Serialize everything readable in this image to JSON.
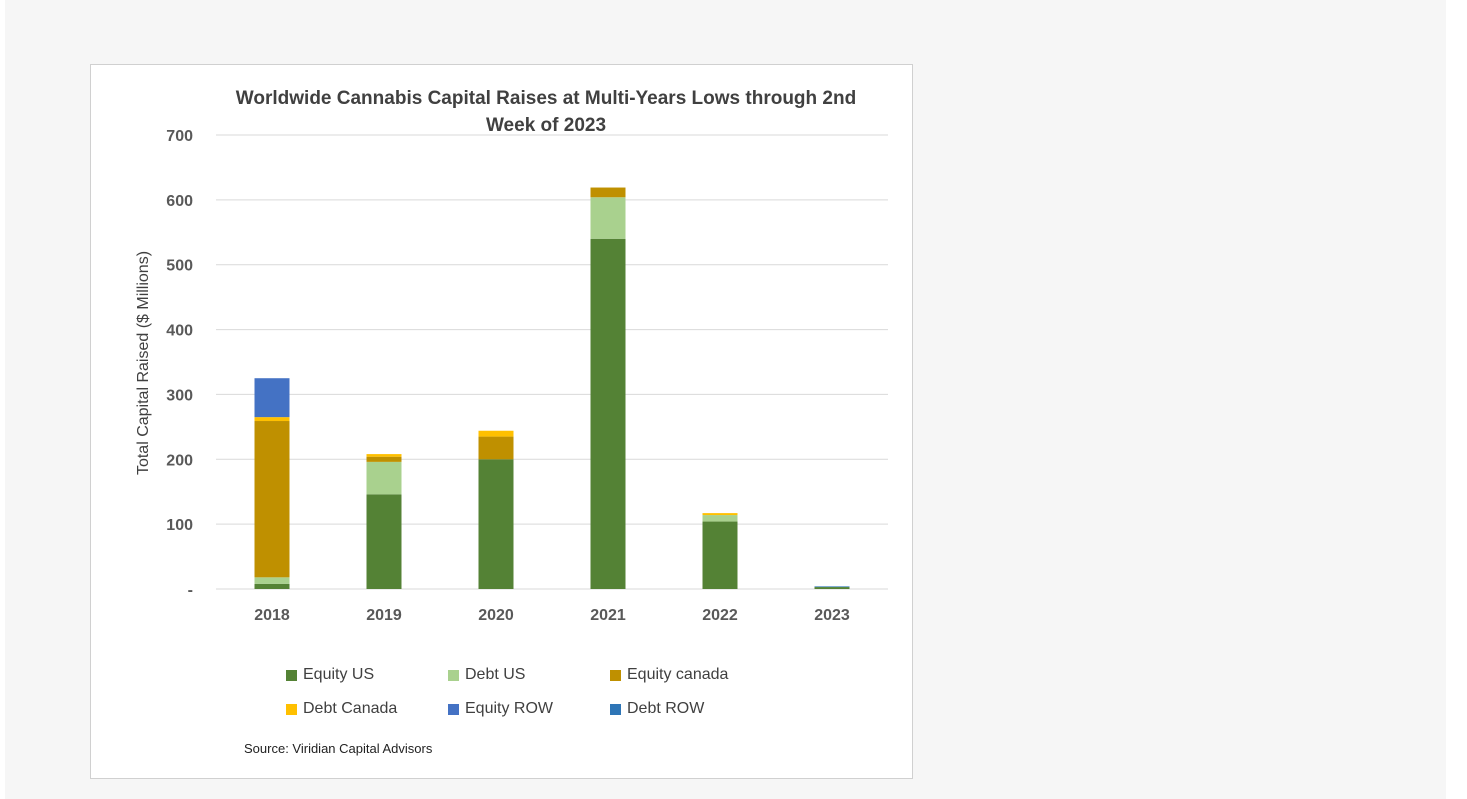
{
  "chart_data": {
    "type": "bar",
    "stacked": true,
    "title": "Worldwide Cannabis Capital Raises at Multi-Years Lows through 2nd Week of 2023",
    "xlabel": "",
    "ylabel": "Total Capital Raised ($ Millions)",
    "ylim": [
      0,
      700
    ],
    "yticks": [
      0,
      100,
      200,
      300,
      400,
      500,
      600,
      700
    ],
    "ytick_labels": [
      "-",
      "100",
      "200",
      "300",
      "400",
      "500",
      "600",
      "700"
    ],
    "grid": true,
    "legend_position": "bottom",
    "categories": [
      "2018",
      "2019",
      "2020",
      "2021",
      "2022",
      "2023"
    ],
    "series": [
      {
        "name": "Equity US",
        "color": "#548235",
        "values": [
          8,
          146,
          200,
          540,
          104,
          3
        ]
      },
      {
        "name": "Debt US",
        "color": "#a9d18e",
        "values": [
          10,
          50,
          0,
          64,
          10,
          0
        ]
      },
      {
        "name": "Equity canada",
        "color": "#bf9000",
        "values": [
          241,
          8,
          35,
          15,
          0,
          0
        ]
      },
      {
        "name": "Debt Canada",
        "color": "#ffc000",
        "values": [
          6,
          4,
          9,
          0,
          3,
          0
        ]
      },
      {
        "name": "Equity ROW",
        "color": "#4472c4",
        "values": [
          60,
          0,
          0,
          0,
          0,
          0
        ]
      },
      {
        "name": "Debt ROW",
        "color": "#2e75b6",
        "values": [
          0,
          0,
          0,
          0,
          0,
          1
        ]
      }
    ],
    "source": "Source: Viridian Capital Advisors"
  }
}
